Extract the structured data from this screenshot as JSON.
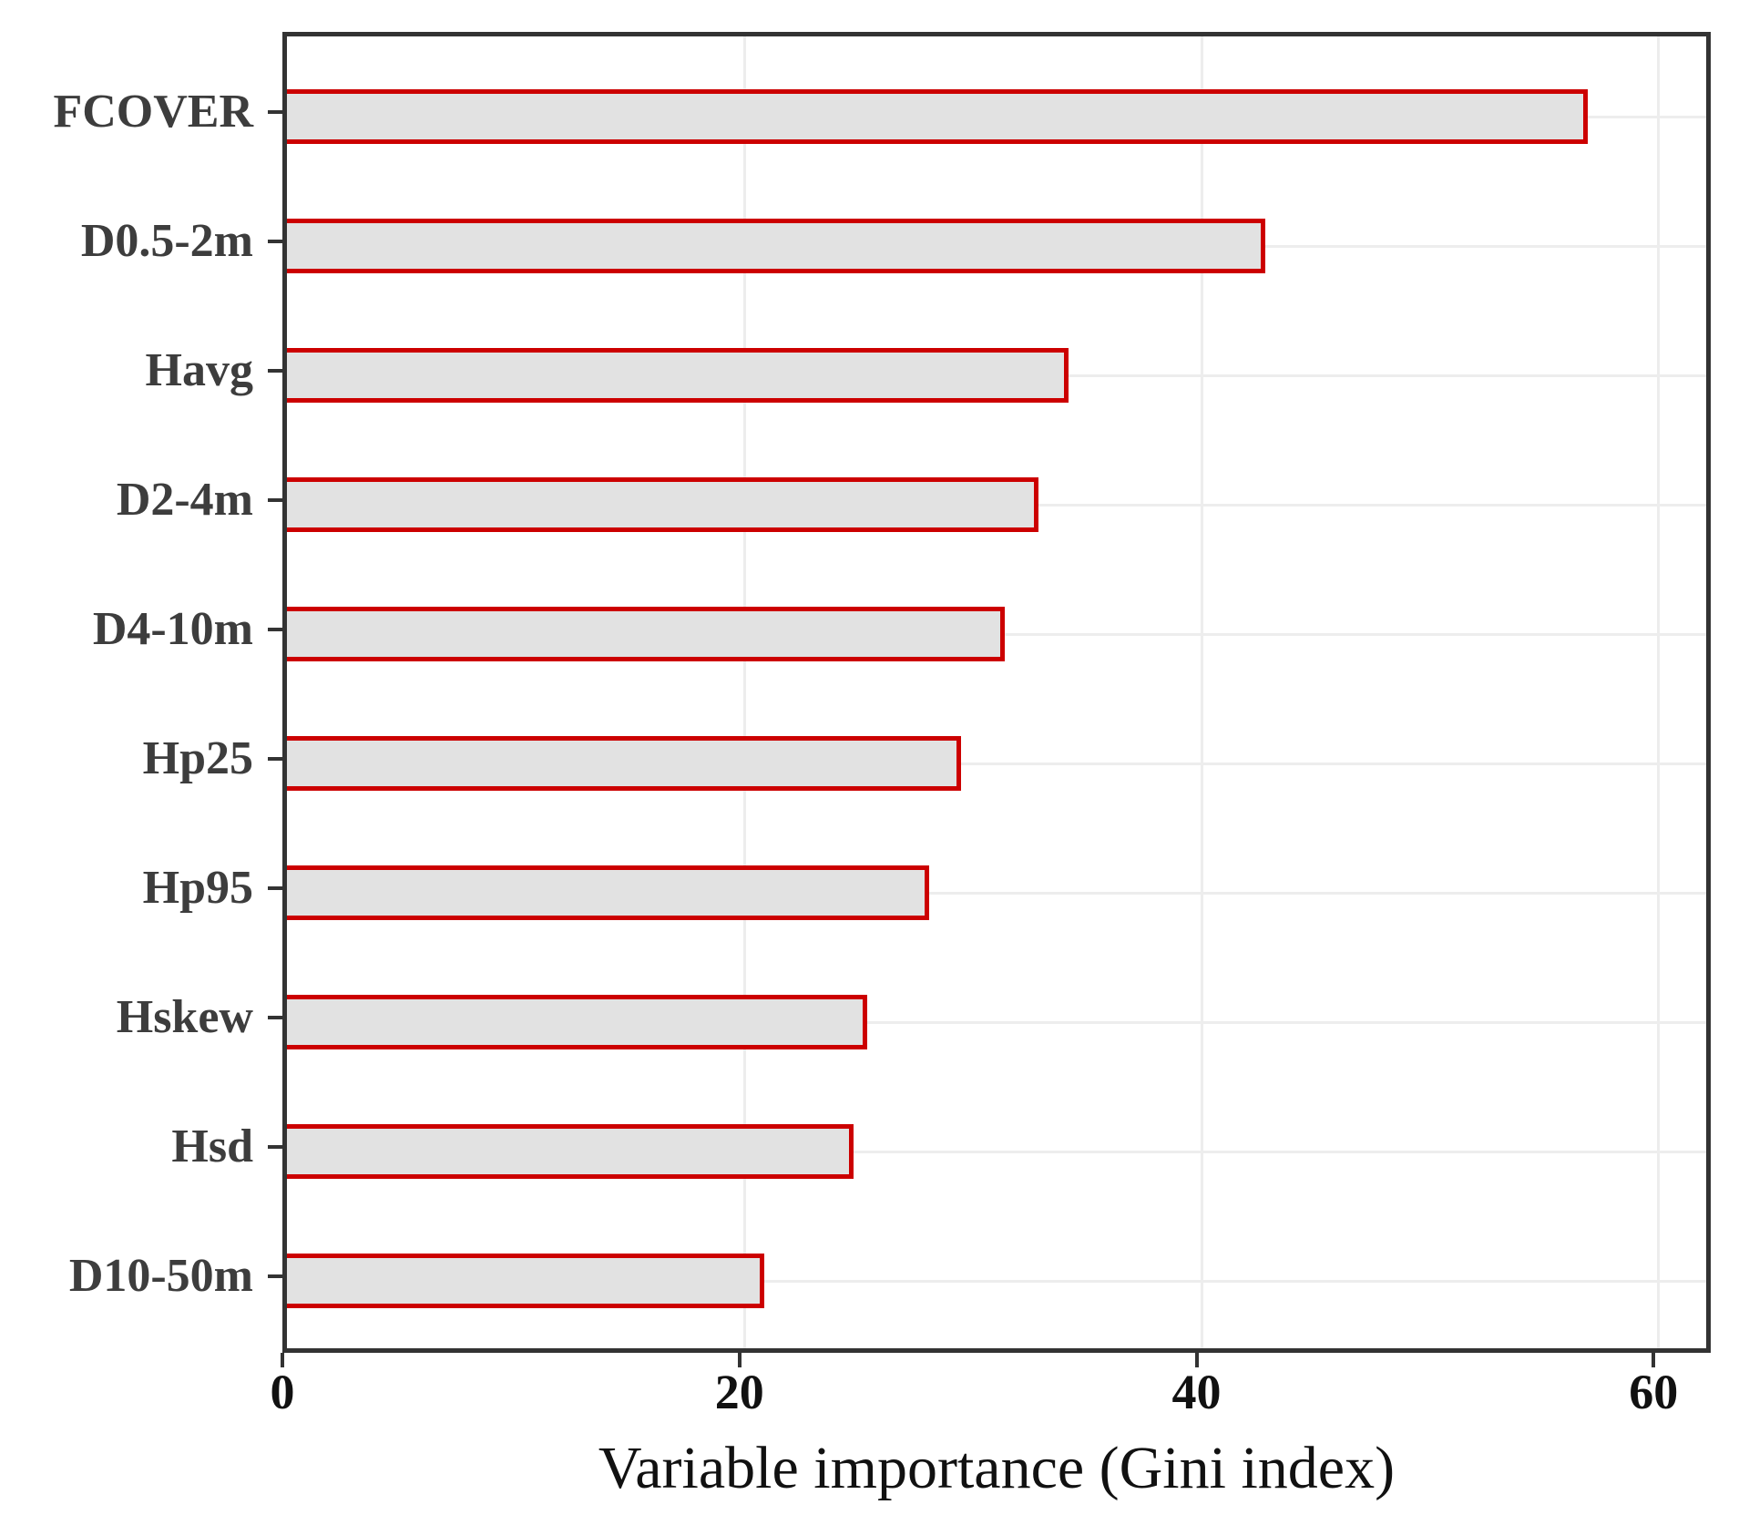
{
  "chart_data": {
    "type": "bar",
    "orientation": "horizontal",
    "title": "",
    "xlabel": "Variable importance (Gini index)",
    "ylabel": "",
    "categories": [
      "FCOVER",
      "D0.5-2m",
      "Havg",
      "D2-4m",
      "D4-10m",
      "Hp25",
      "Hp95",
      "Hskew",
      "Hsd",
      "D10-50m"
    ],
    "values": [
      56.9,
      42.8,
      34.2,
      32.9,
      31.4,
      29.5,
      28.1,
      25.4,
      24.8,
      20.9
    ],
    "xlim": [
      0,
      62.5
    ],
    "xticks": [
      0,
      20,
      40,
      60
    ],
    "grid": "major",
    "legend": "none",
    "colors": {
      "bar_fill": "#e2e2e2",
      "bar_border": "#cc0000",
      "panel_border": "#333333",
      "gridline": "#ededed",
      "tick_label": "#111111",
      "category_label": "#3d3d3d"
    }
  }
}
